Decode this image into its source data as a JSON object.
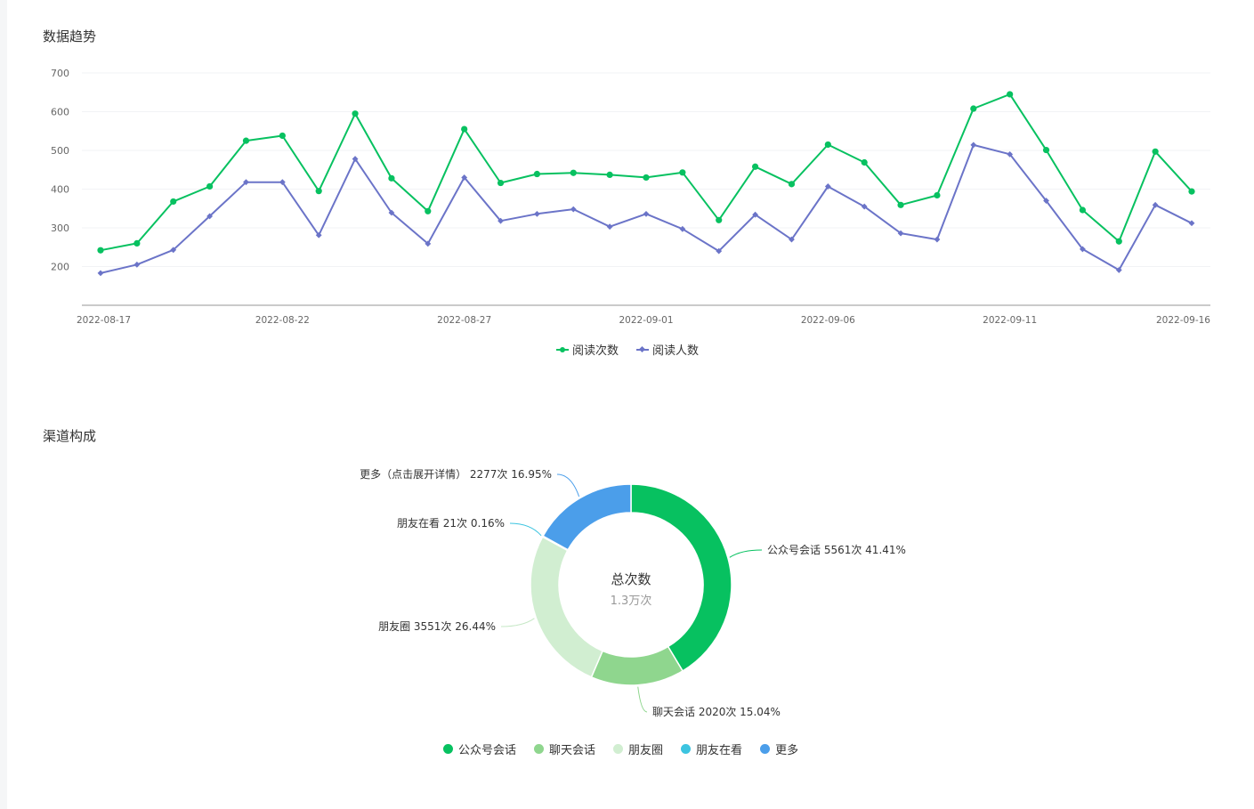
{
  "sections": {
    "trend_title": "数据趋势",
    "channel_title": "渠道构成"
  },
  "chart_data": [
    {
      "type": "line",
      "x": [
        "2022-08-17",
        "2022-08-18",
        "2022-08-19",
        "2022-08-20",
        "2022-08-21",
        "2022-08-22",
        "2022-08-23",
        "2022-08-24",
        "2022-08-25",
        "2022-08-26",
        "2022-08-27",
        "2022-08-28",
        "2022-08-29",
        "2022-08-30",
        "2022-08-31",
        "2022-09-01",
        "2022-09-02",
        "2022-09-03",
        "2022-09-04",
        "2022-09-05",
        "2022-09-06",
        "2022-09-07",
        "2022-09-08",
        "2022-09-09",
        "2022-09-10",
        "2022-09-11",
        "2022-09-12",
        "2022-09-13",
        "2022-09-14",
        "2022-09-15",
        "2022-09-16"
      ],
      "x_tick_labels": [
        "2022-08-17",
        "2022-08-22",
        "2022-08-27",
        "2022-09-01",
        "2022-09-06",
        "2022-09-11",
        "2022-09-16"
      ],
      "y_ticks": [
        "200",
        "300",
        "400",
        "500",
        "600",
        "700"
      ],
      "ylim": [
        100,
        700
      ],
      "grid": true,
      "legend_position": "bottom-center",
      "series": [
        {
          "name": "阅读次数",
          "color": "#07c160",
          "symbol": "circle",
          "values": [
            242,
            260,
            368,
            407,
            525,
            538,
            395,
            595,
            428,
            343,
            555,
            416,
            439,
            442,
            437,
            430,
            443,
            320,
            458,
            413,
            515,
            469,
            359,
            384,
            608,
            645,
            501,
            346,
            265,
            497,
            394
          ]
        },
        {
          "name": "阅读人数",
          "color": "#6b74c8",
          "symbol": "diamond",
          "values": [
            183,
            205,
            243,
            330,
            418,
            418,
            281,
            478,
            339,
            259,
            430,
            318,
            336,
            348,
            303,
            336,
            297,
            240,
            334,
            270,
            407,
            355,
            286,
            270,
            514,
            490,
            370,
            245,
            191,
            359,
            312
          ]
        }
      ]
    },
    {
      "type": "pie",
      "donut": true,
      "center_title": "总次数",
      "center_value": "1.3万次",
      "slices": [
        {
          "name": "公众号会话",
          "value": 5561,
          "percent": 41.41,
          "color": "#07c160",
          "label": "公众号会话 5561次 41.41%"
        },
        {
          "name": "聊天会话",
          "value": 2020,
          "percent": 15.04,
          "color": "#8fd68e",
          "label": "聊天会话 2020次 15.04%"
        },
        {
          "name": "朋友圈",
          "value": 3551,
          "percent": 26.44,
          "color": "#d1eed1",
          "label": "朋友圈 3551次 26.44%"
        },
        {
          "name": "朋友在看",
          "value": 21,
          "percent": 0.16,
          "color": "#3cc4e0",
          "label": "朋友在看 21次 0.16%"
        },
        {
          "name": "更多",
          "value": 2277,
          "percent": 16.95,
          "color": "#4b9eea",
          "label": "更多（点击展开详情） 2277次 16.95%"
        }
      ],
      "legend_position": "bottom-center"
    }
  ]
}
